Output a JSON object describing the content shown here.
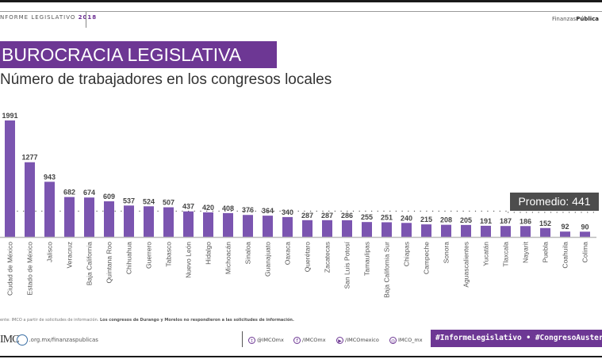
{
  "header": {
    "left_label": "NFORME LEGISLATIVO",
    "left_year": "2018",
    "right_label_light": "Finanzas",
    "right_label_bold": "Pública"
  },
  "title": "BUROCRACIA LEGISLATIVA",
  "subtitle": "Número de trabajadores en los congresos locales",
  "average_label": "Promedio: 441",
  "chart_data": {
    "type": "bar",
    "title": "BUROCRACIA LEGISLATIVA",
    "subtitle": "Número de trabajadores en los congresos locales",
    "xlabel": "",
    "ylabel": "",
    "ylim": [
      0,
      1991
    ],
    "grid": false,
    "average": 441,
    "categories": [
      "Ciudad de México",
      "Estado de México",
      "Jalisco",
      "Veracruz",
      "Baja California",
      "Quintana Roo",
      "Chihuahua",
      "Guerrero",
      "Tabasco",
      "Nuevo León",
      "Hidalgo",
      "Michoacán",
      "Sinaloa",
      "Guanajuato",
      "Oaxaca",
      "Querétaro",
      "Zacatecas",
      "San Luis Potosí",
      "Tamaulipas",
      "Baja California Sur",
      "Chiapas",
      "Campeche",
      "Sonora",
      "Aguascalientes",
      "Yucatán",
      "Tlaxcala",
      "Nayarit",
      "Puebla",
      "Coahuila",
      "Colima"
    ],
    "values": [
      1991,
      1277,
      943,
      682,
      674,
      609,
      537,
      524,
      507,
      437,
      420,
      408,
      376,
      364,
      340,
      287,
      287,
      286,
      255,
      251,
      240,
      215,
      208,
      205,
      191,
      187,
      186,
      152,
      92,
      90
    ],
    "colors": {
      "bar": "#7b55b0",
      "average_line": "#555555",
      "baseline": "#bbbbbb"
    }
  },
  "footer": {
    "source_prefix": "ente: IMCO a partir de solicitudes de información.",
    "source_note": "Los congresos de Durango y Morelos no respondieron a las solicitudes de información.",
    "logo_text": "IMC",
    "logo_url": ".org.mx/finanzaspublicas",
    "social": [
      {
        "icon": "twitter-icon",
        "glyph": "t",
        "label": "@IMCOmx"
      },
      {
        "icon": "facebook-icon",
        "glyph": "f",
        "label": "/IMCOmx"
      },
      {
        "icon": "youtube-icon",
        "glyph": "▶",
        "label": "/IMCOmexico"
      },
      {
        "icon": "instagram-icon",
        "glyph": "◎",
        "label": "IMCO_mx"
      }
    ],
    "hashtags": "#InformeLegislativo • #CongresoAustero"
  },
  "colors": {
    "brand_purple": "#6d3794",
    "dark": "#1a1a1a",
    "badge_gray": "#4d4d4d"
  }
}
